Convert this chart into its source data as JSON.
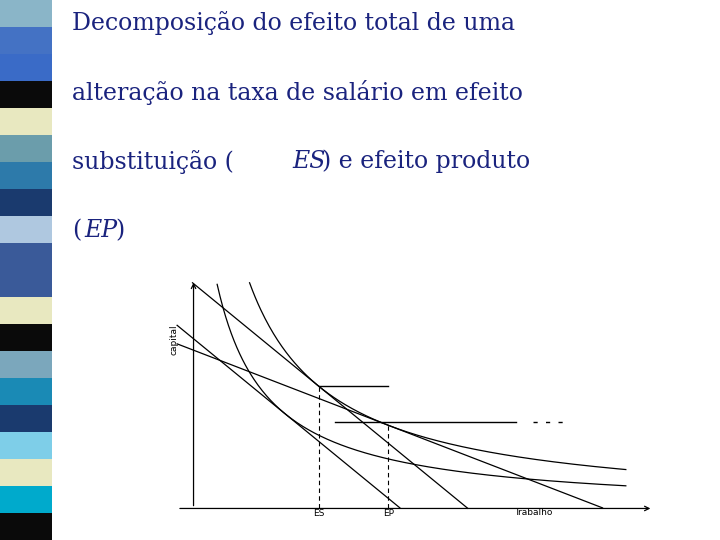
{
  "title_color": "#1a237e",
  "bg_color": "#ffffff",
  "strip_colors": [
    "#8ab5c8",
    "#4472c4",
    "#3a6bc7",
    "#0a0a0a",
    "#e8e8c0",
    "#6b9dab",
    "#2d7aaa",
    "#1a3a6e",
    "#afc8e0",
    "#3a5a99",
    "#3a5a99",
    "#e8e8c0",
    "#0a0a0a",
    "#7ba7bc",
    "#1a8ab5",
    "#1a3a6e",
    "#7ecee8",
    "#e8e8c0",
    "#00aacc",
    "#0a0a0a"
  ],
  "xlabel": "Trabalho",
  "ylabel": "capital",
  "label_ep": "EP",
  "label_es": "ES"
}
